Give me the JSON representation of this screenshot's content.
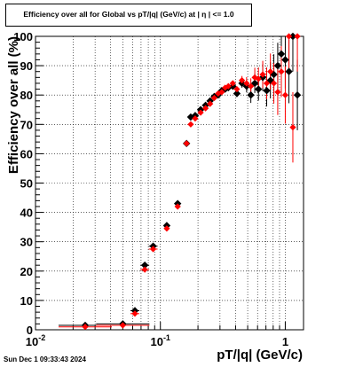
{
  "chart_data": {
    "type": "scatter",
    "title": "Efficiency over all for Global vs pT/|q| (GeV/c) at |  η  | <= 1.0",
    "xlabel": "pT/|q| (GeV/c)",
    "ylabel": "Efficiency over all (%)",
    "x_scale": "log",
    "xlim": [
      0.01,
      1.4
    ],
    "ylim": [
      0,
      100
    ],
    "grid": true,
    "x_tick_labels": [
      "10^-2",
      "10^-1",
      "1"
    ],
    "y_tick_labels": [
      "0",
      "10",
      "20",
      "30",
      "40",
      "50",
      "60",
      "70",
      "80",
      "90",
      "100"
    ],
    "series": [
      {
        "color": "#000000",
        "x": [
          0.025,
          0.05,
          0.0625,
          0.075,
          0.0875,
          0.1125,
          0.1375,
          0.162,
          0.175,
          0.19,
          0.21,
          0.23,
          0.25,
          0.27,
          0.29,
          0.31,
          0.33,
          0.35,
          0.38,
          0.41,
          0.45,
          0.49,
          0.53,
          0.57,
          0.61,
          0.66,
          0.71,
          0.76,
          0.81,
          0.87,
          0.93,
          1.0,
          1.07,
          1.15,
          1.25
        ],
        "values": [
          1.5,
          2.0,
          6.5,
          22.0,
          28.5,
          35.5,
          43.0,
          63.5,
          72.5,
          73.0,
          75.0,
          76.5,
          78.0,
          79.5,
          80.0,
          81.5,
          82.0,
          82.5,
          83.0,
          80.5,
          84.0,
          83.0,
          80.0,
          84.0,
          82.0,
          86.0,
          81.5,
          85.0,
          87.0,
          90.0,
          94.0,
          92.0,
          88.0,
          100.0,
          80.0
        ]
      },
      {
        "color": "#ff0000",
        "x": [
          0.025,
          0.05,
          0.0625,
          0.075,
          0.0875,
          0.1125,
          0.1375,
          0.162,
          0.175,
          0.19,
          0.21,
          0.23,
          0.25,
          0.27,
          0.29,
          0.31,
          0.33,
          0.35,
          0.38,
          0.41,
          0.45,
          0.49,
          0.53,
          0.57,
          0.61,
          0.66,
          0.71,
          0.76,
          0.81,
          0.87,
          0.93,
          1.0,
          1.07,
          1.15,
          1.25
        ],
        "values": [
          1.0,
          1.5,
          5.5,
          20.5,
          27.5,
          34.5,
          42.0,
          63.5,
          70.0,
          72.0,
          74.0,
          75.5,
          77.0,
          79.0,
          80.5,
          81.0,
          82.5,
          83.0,
          84.0,
          82.0,
          85.0,
          84.0,
          83.0,
          86.0,
          85.5,
          87.0,
          84.0,
          88.0,
          84.0,
          81.0,
          88.0,
          80.0,
          100.0,
          69.0,
          100.0
        ]
      }
    ]
  },
  "footer": {
    "timestamp": "Sun Dec  1 09:33:43 2024"
  }
}
